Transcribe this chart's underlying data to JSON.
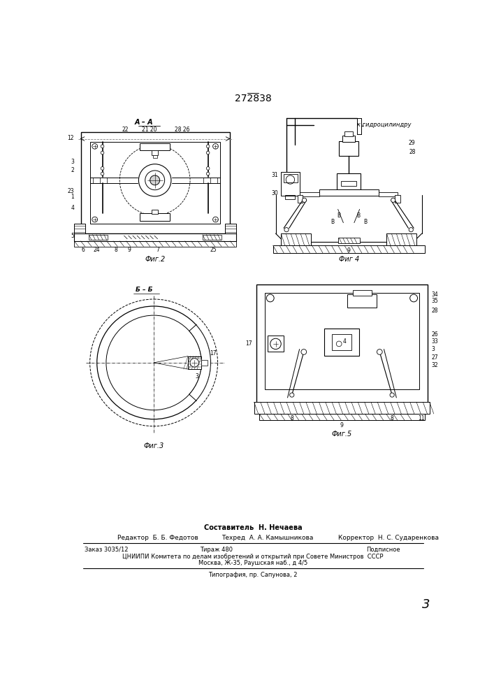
{
  "patent_number": "272838",
  "background_color": "#ffffff",
  "line_color": "#000000",
  "fig_width": 7.07,
  "fig_height": 10.0,
  "footer": {
    "line1_center": "Составитель  Н. Нечаева",
    "line2_left": "Редактор  Б. Б. Федотов",
    "line2_center": "Техред  А. А. Камышникова",
    "line2_right": "Корректор  Н. С. Сударенкова",
    "line3_left": "Заказ 3035/12",
    "line3_center": "Тираж 480",
    "line3_right": "Подписное",
    "line4": "ЦНИИПИ Комитета по делам изобретений и открытий при Совете Министров  СССР",
    "line5": "Москва, Ж-35, Раушская наб., д 4/5",
    "line6": "Типография, пр. Сапунова, 2"
  },
  "page_number": "3",
  "fig2_label": "Фиг.2",
  "fig3_label": "Фиг.3",
  "fig4_label": "Фиг 4",
  "fig5_label": "Фиг.5",
  "fig4_annotation": "к гидроцилиндру"
}
